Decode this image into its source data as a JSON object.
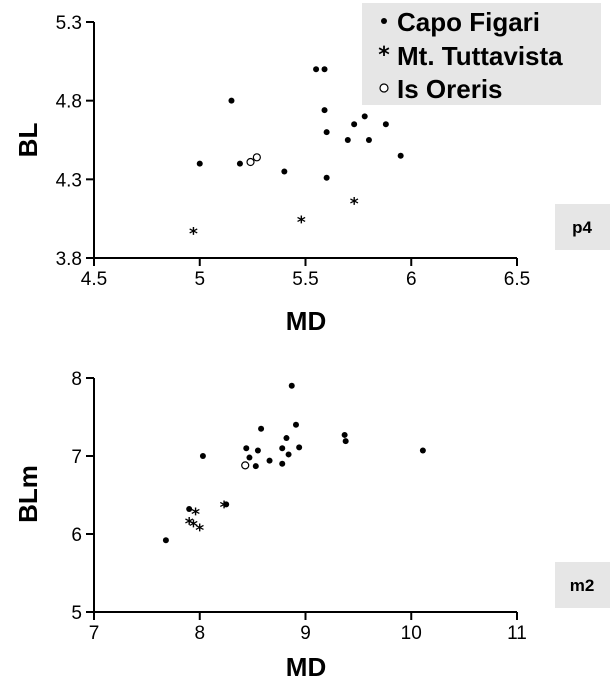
{
  "legend": {
    "items": [
      {
        "symbol": "filled-dot",
        "label": "Capo Figari"
      },
      {
        "symbol": "asterisk",
        "label": "Mt. Tuttavista"
      },
      {
        "symbol": "open-circle",
        "label": "Is Oreris"
      }
    ],
    "background": "#e6e6e6"
  },
  "chart_data": [
    {
      "type": "scatter",
      "panel_label": "p4",
      "xlabel": "MD",
      "ylabel": "BL",
      "xlim": [
        4.5,
        6.5
      ],
      "ylim": [
        3.8,
        5.3
      ],
      "xticks": [
        4.5,
        5,
        5.5,
        6,
        6.5
      ],
      "xtick_labels": [
        "4.5",
        "5",
        "5.5",
        "6",
        "6.5"
      ],
      "yticks": [
        3.8,
        4.3,
        4.8,
        5.3
      ],
      "ytick_labels": [
        "3.8",
        "4.3",
        "4.8",
        "5.3"
      ],
      "series": [
        {
          "name": "Capo Figari",
          "marker": "filled-dot",
          "points": [
            [
              5.0,
              4.4
            ],
            [
              5.15,
              4.8
            ],
            [
              5.19,
              4.4
            ],
            [
              5.4,
              4.35
            ],
            [
              5.55,
              5.0
            ],
            [
              5.59,
              5.0
            ],
            [
              5.59,
              4.74
            ],
            [
              5.6,
              4.6
            ],
            [
              5.6,
              4.31
            ],
            [
              5.7,
              4.55
            ],
            [
              5.73,
              4.65
            ],
            [
              5.78,
              4.7
            ],
            [
              5.8,
              4.55
            ],
            [
              5.88,
              4.65
            ],
            [
              5.95,
              4.45
            ]
          ]
        },
        {
          "name": "Mt. Tuttavista",
          "marker": "asterisk",
          "points": [
            [
              4.97,
              3.97
            ],
            [
              5.48,
              4.04
            ],
            [
              5.73,
              4.16
            ]
          ]
        },
        {
          "name": "Is Oreris",
          "marker": "open-circle",
          "points": [
            [
              5.24,
              4.41
            ],
            [
              5.27,
              4.44
            ]
          ]
        }
      ]
    },
    {
      "type": "scatter",
      "panel_label": "m2",
      "xlabel": "MD",
      "ylabel": "BLm",
      "xlim": [
        7,
        11
      ],
      "ylim": [
        5,
        8
      ],
      "xticks": [
        7,
        8,
        9,
        10,
        11
      ],
      "xtick_labels": [
        "7",
        "8",
        "9",
        "10",
        "11"
      ],
      "yticks": [
        5,
        6,
        7,
        8
      ],
      "ytick_labels": [
        "5",
        "6",
        "7",
        "8"
      ],
      "series": [
        {
          "name": "Capo Figari",
          "marker": "filled-dot",
          "points": [
            [
              7.68,
              5.92
            ],
            [
              7.9,
              6.32
            ],
            [
              8.03,
              7.0
            ],
            [
              8.25,
              6.38
            ],
            [
              8.44,
              7.1
            ],
            [
              8.47,
              6.98
            ],
            [
              8.53,
              6.87
            ],
            [
              8.55,
              7.07
            ],
            [
              8.58,
              7.35
            ],
            [
              8.66,
              6.94
            ],
            [
              8.78,
              6.9
            ],
            [
              8.78,
              7.1
            ],
            [
              8.82,
              7.23
            ],
            [
              8.84,
              7.02
            ],
            [
              8.87,
              7.9
            ],
            [
              8.91,
              7.4
            ],
            [
              8.94,
              7.11
            ],
            [
              9.37,
              7.27
            ],
            [
              9.38,
              7.19
            ],
            [
              10.11,
              7.07
            ]
          ]
        },
        {
          "name": "Mt. Tuttavista",
          "marker": "asterisk",
          "points": [
            [
              7.9,
              6.16
            ],
            [
              7.94,
              6.13
            ],
            [
              7.96,
              6.28
            ],
            [
              8.0,
              6.08
            ],
            [
              8.23,
              6.37
            ]
          ]
        },
        {
          "name": "Is Oreris",
          "marker": "open-circle",
          "points": [
            [
              8.43,
              6.88
            ]
          ]
        }
      ]
    }
  ]
}
